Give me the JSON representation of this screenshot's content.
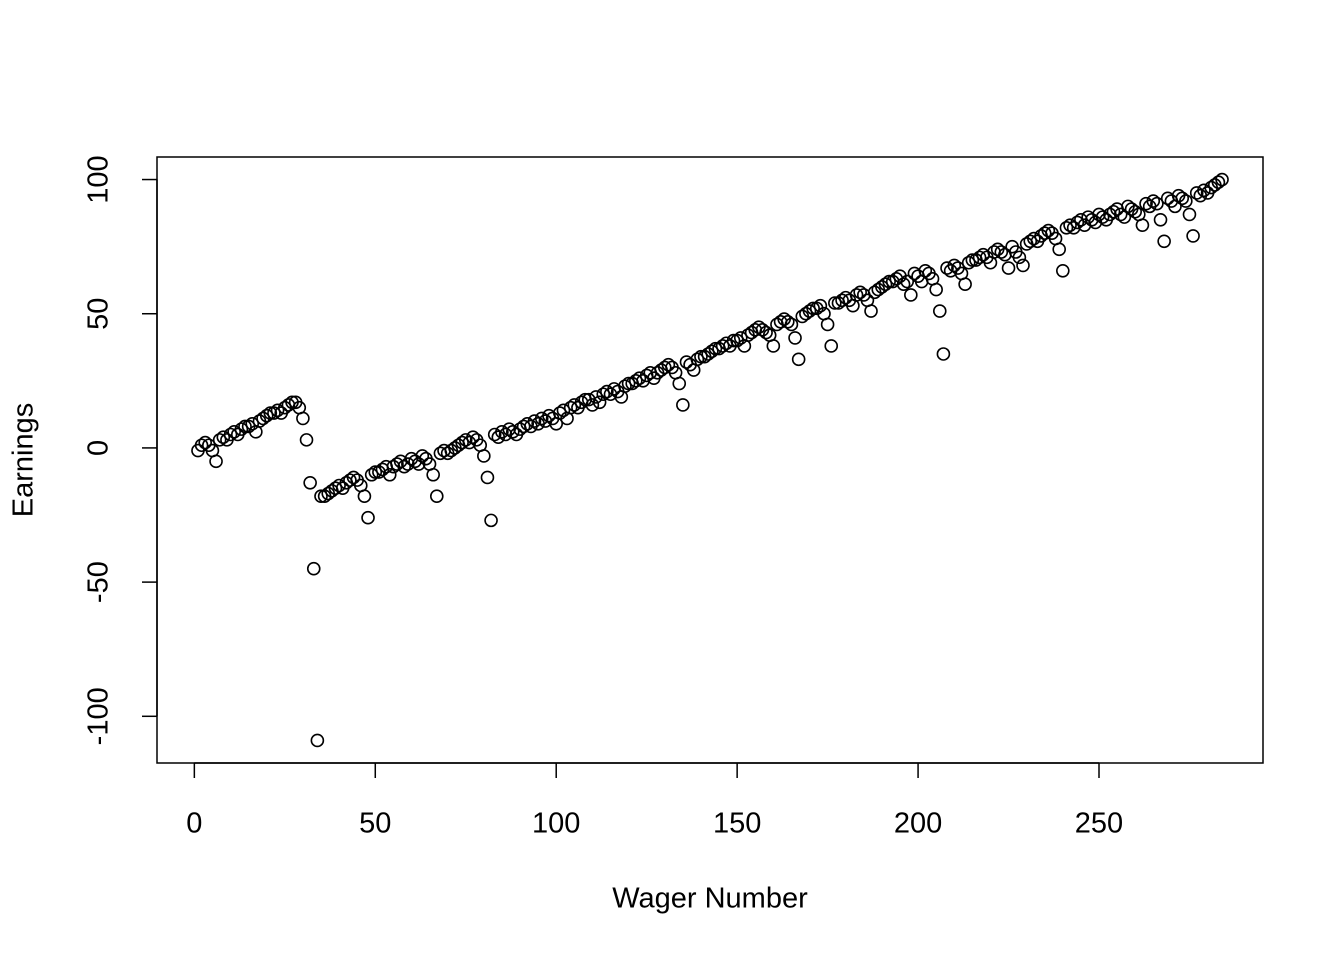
{
  "chart_data": {
    "type": "scatter",
    "xlabel": "Wager Number",
    "ylabel": "Earnings",
    "xlim": [
      -10.32,
      295.32
    ],
    "ylim": [
      -117.4,
      108.4
    ],
    "xticks": [
      0,
      50,
      100,
      150,
      200,
      250
    ],
    "yticks": [
      -100,
      -50,
      0,
      50,
      100
    ],
    "color": "#000000",
    "x": [
      1,
      2,
      3,
      4,
      5,
      6,
      7,
      8,
      9,
      10,
      11,
      12,
      13,
      14,
      15,
      16,
      17,
      18,
      19,
      20,
      21,
      22,
      23,
      24,
      25,
      26,
      27,
      28,
      29,
      30,
      31,
      32,
      33,
      34,
      35,
      36,
      37,
      38,
      39,
      40,
      41,
      42,
      43,
      44,
      45,
      46,
      47,
      48,
      49,
      50,
      51,
      52,
      53,
      54,
      55,
      56,
      57,
      58,
      59,
      60,
      61,
      62,
      63,
      64,
      65,
      66,
      67,
      68,
      69,
      70,
      71,
      72,
      73,
      74,
      75,
      76,
      77,
      78,
      79,
      80,
      81,
      82,
      83,
      84,
      85,
      86,
      87,
      88,
      89,
      90,
      91,
      92,
      93,
      94,
      95,
      96,
      97,
      98,
      99,
      100,
      101,
      102,
      103,
      104,
      105,
      106,
      107,
      108,
      109,
      110,
      111,
      112,
      113,
      114,
      115,
      116,
      117,
      118,
      119,
      120,
      121,
      122,
      123,
      124,
      125,
      126,
      127,
      128,
      129,
      130,
      131,
      132,
      133,
      134,
      135,
      136,
      137,
      138,
      139,
      140,
      141,
      142,
      143,
      144,
      145,
      146,
      147,
      148,
      149,
      150,
      151,
      152,
      153,
      154,
      155,
      156,
      157,
      158,
      159,
      160,
      161,
      162,
      163,
      164,
      165,
      166,
      167,
      168,
      169,
      170,
      171,
      172,
      173,
      174,
      175,
      176,
      177,
      178,
      179,
      180,
      181,
      182,
      183,
      184,
      185,
      186,
      187,
      188,
      189,
      190,
      191,
      192,
      193,
      194,
      195,
      196,
      197,
      198,
      199,
      200,
      201,
      202,
      203,
      204,
      205,
      206,
      207,
      208,
      209,
      210,
      211,
      212,
      213,
      214,
      215,
      216,
      217,
      218,
      219,
      220,
      221,
      222,
      223,
      224,
      225,
      226,
      227,
      228,
      229,
      230,
      231,
      232,
      233,
      234,
      235,
      236,
      237,
      238,
      239,
      240,
      241,
      242,
      243,
      244,
      245,
      246,
      247,
      248,
      249,
      250,
      251,
      252,
      253,
      254,
      255,
      256,
      257,
      258,
      259,
      260,
      261,
      262,
      263,
      264,
      265,
      266,
      267,
      268,
      269,
      270,
      271,
      272,
      273,
      274,
      275,
      276,
      277,
      278,
      279,
      280,
      281,
      282,
      283,
      284
    ],
    "values": [
      -1,
      1,
      2,
      1,
      -1,
      -5,
      3,
      4,
      3,
      5,
      6,
      5,
      7,
      8,
      8,
      9,
      6,
      10,
      11,
      12,
      13,
      13,
      14,
      13,
      15,
      16,
      17,
      17,
      15,
      11,
      3,
      -13,
      -45,
      -109,
      -18,
      -18,
      -17,
      -16,
      -15,
      -14,
      -15,
      -13,
      -12,
      -11,
      -12,
      -14,
      -18,
      -26,
      -10,
      -9,
      -9,
      -8,
      -7,
      -10,
      -7,
      -6,
      -5,
      -7,
      -6,
      -4,
      -5,
      -6,
      -3,
      -4,
      -6,
      -10,
      -18,
      -2,
      -1,
      -2,
      -1,
      0,
      1,
      2,
      3,
      2,
      4,
      3,
      1,
      -3,
      -11,
      -27,
      5,
      4,
      6,
      5,
      7,
      6,
      5,
      7,
      8,
      9,
      8,
      10,
      9,
      11,
      10,
      12,
      11,
      9,
      13,
      14,
      11,
      15,
      16,
      15,
      17,
      18,
      18,
      16,
      19,
      17,
      20,
      21,
      20,
      22,
      21,
      19,
      23,
      24,
      24,
      25,
      26,
      25,
      27,
      28,
      26,
      28,
      29,
      30,
      31,
      30,
      28,
      24,
      16,
      32,
      31,
      29,
      33,
      34,
      34,
      35,
      36,
      37,
      37,
      38,
      39,
      38,
      40,
      40,
      41,
      38,
      42,
      43,
      44,
      45,
      44,
      43,
      42,
      38,
      46,
      47,
      48,
      47,
      46,
      41,
      33,
      49,
      50,
      51,
      52,
      52,
      53,
      50,
      46,
      38,
      54,
      54,
      55,
      56,
      55,
      53,
      57,
      58,
      57,
      55,
      51,
      58,
      59,
      60,
      61,
      62,
      62,
      63,
      64,
      61,
      62,
      57,
      65,
      64,
      62,
      66,
      65,
      63,
      59,
      51,
      35,
      67,
      66,
      68,
      67,
      65,
      61,
      69,
      70,
      70,
      71,
      72,
      71,
      69,
      73,
      74,
      73,
      72,
      67,
      75,
      73,
      71,
      68,
      76,
      77,
      78,
      77,
      79,
      80,
      81,
      80,
      78,
      74,
      66,
      82,
      83,
      82,
      84,
      85,
      83,
      86,
      85,
      84,
      87,
      86,
      85,
      87,
      88,
      89,
      87,
      86,
      90,
      89,
      88,
      87,
      83,
      91,
      90,
      92,
      91,
      85,
      77,
      93,
      92,
      90,
      94,
      93,
      92,
      87,
      79,
      95,
      94,
      96,
      95,
      97,
      98,
      99,
      100
    ]
  }
}
